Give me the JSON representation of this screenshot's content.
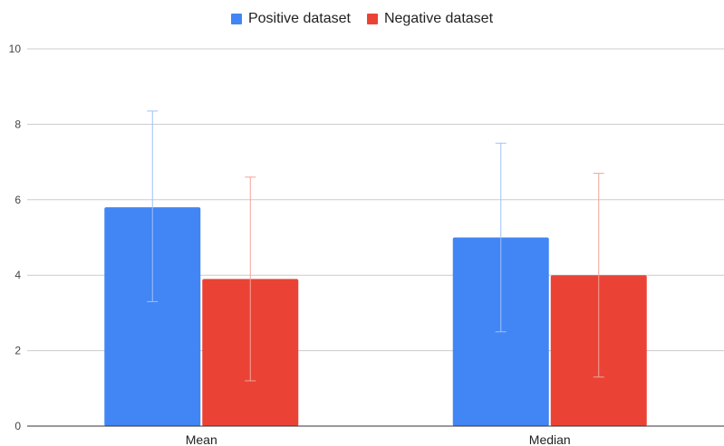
{
  "chart_data": {
    "type": "bar",
    "categories": [
      "Mean",
      "Median"
    ],
    "series": [
      {
        "name": "Positive dataset",
        "color": "#4285f4",
        "values": [
          5.8,
          5.0
        ],
        "error_low": [
          3.3,
          2.5
        ],
        "error_high": [
          8.35,
          7.5
        ]
      },
      {
        "name": "Negative dataset",
        "color": "#ea4335",
        "values": [
          3.9,
          4.0
        ],
        "error_low": [
          1.2,
          1.3
        ],
        "error_high": [
          6.6,
          6.7
        ]
      }
    ],
    "title": "",
    "xlabel": "",
    "ylabel": "",
    "ylim": [
      0,
      10
    ],
    "yticks": [
      "0",
      "2",
      "4",
      "6",
      "8",
      "10"
    ],
    "grid": true,
    "legend_position": "top"
  }
}
